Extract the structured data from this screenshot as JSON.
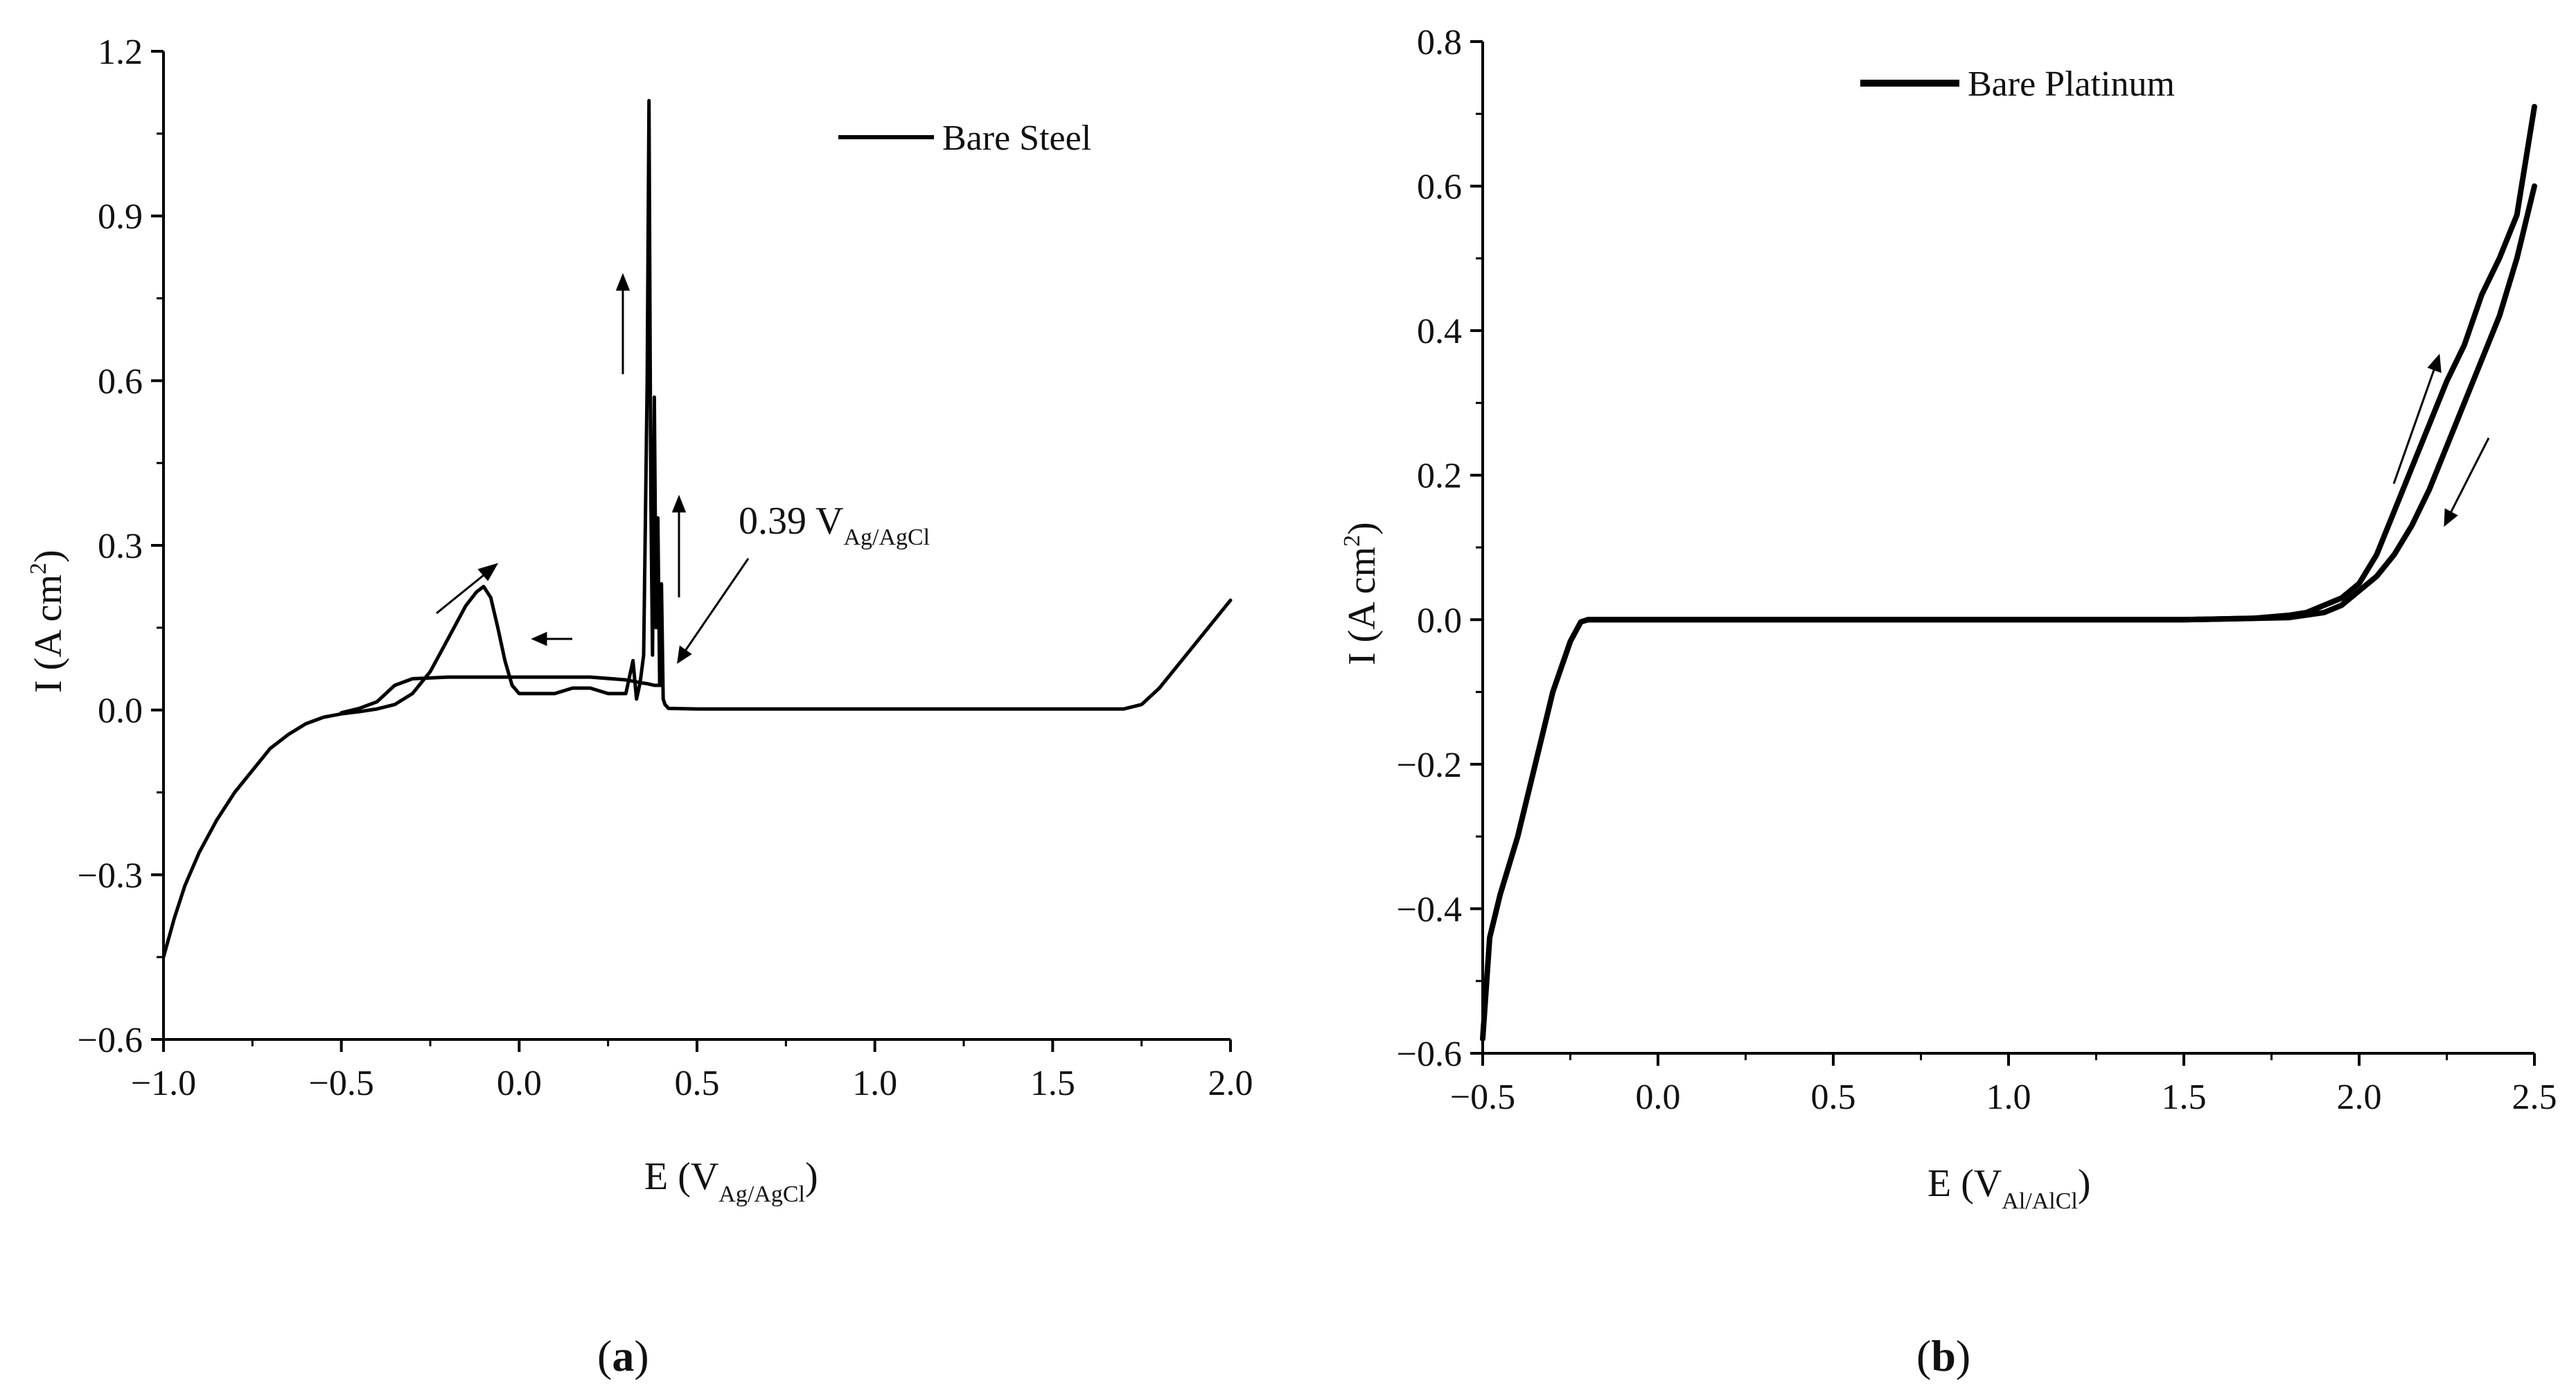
{
  "chart_data": [
    {
      "id": "a",
      "type": "line",
      "panel_label": {
        "open": "(",
        "letter": "a",
        "close": ")"
      },
      "xlabel": {
        "main": "E (V",
        "sub": "Ag/AgCl",
        "close": ")"
      },
      "ylabel": {
        "main": "I (A cm",
        "sup": "2",
        "close": ")"
      },
      "xlim": [
        -1.0,
        2.0
      ],
      "ylim": [
        -0.6,
        1.2
      ],
      "xticks": [
        -1.0,
        -0.5,
        0.0,
        0.5,
        1.0,
        1.5,
        2.0
      ],
      "xtick_labels": [
        "−1.0",
        "−0.5",
        "0.0",
        "0.5",
        "1.0",
        "1.5",
        "2.0"
      ],
      "yticks": [
        -0.6,
        -0.3,
        0.0,
        0.3,
        0.6,
        0.9,
        1.2
      ],
      "ytick_labels": [
        "−0.6",
        "−0.3",
        "0.0",
        "0.3",
        "0.6",
        "0.9",
        "1.2"
      ],
      "legend": {
        "label": "Bare Steel",
        "placement": "top-right"
      },
      "annotation": {
        "main": "0.39 V",
        "sub": "Ag/AgCl",
        "x": 0.39,
        "y": 0.0
      },
      "series": [
        {
          "name": "Bare Steel (forward scan)",
          "x": [
            -1.0,
            -0.97,
            -0.94,
            -0.9,
            -0.85,
            -0.8,
            -0.75,
            -0.7,
            -0.65,
            -0.6,
            -0.55,
            -0.5,
            -0.45,
            -0.4,
            -0.35,
            -0.3,
            -0.25,
            -0.2,
            -0.15,
            -0.12,
            -0.1,
            -0.08,
            -0.06,
            -0.04,
            -0.02,
            0.0,
            0.05,
            0.1,
            0.15,
            0.2,
            0.25,
            0.3,
            0.32,
            0.33,
            0.34,
            0.35,
            0.36,
            0.365,
            0.37,
            0.375,
            0.38,
            0.385,
            0.39,
            0.395,
            0.4,
            0.405,
            0.41,
            0.42,
            0.5,
            0.8,
            1.0,
            1.2,
            1.5,
            1.7,
            1.75,
            1.8,
            1.85,
            1.9,
            1.95,
            2.0
          ],
          "y": [
            -0.45,
            -0.38,
            -0.32,
            -0.26,
            -0.2,
            -0.15,
            -0.11,
            -0.07,
            -0.045,
            -0.025,
            -0.013,
            -0.007,
            -0.003,
            0.002,
            0.01,
            0.03,
            0.07,
            0.13,
            0.19,
            0.215,
            0.225,
            0.205,
            0.15,
            0.09,
            0.045,
            0.03,
            0.03,
            0.03,
            0.04,
            0.04,
            0.03,
            0.03,
            0.09,
            0.02,
            0.05,
            0.1,
            0.6,
            1.11,
            0.4,
            0.1,
            0.57,
            0.15,
            0.35,
            0.05,
            0.23,
            0.02,
            0.01,
            0.003,
            0.002,
            0.002,
            0.002,
            0.002,
            0.002,
            0.002,
            0.01,
            0.04,
            0.08,
            0.12,
            0.16,
            0.2
          ]
        },
        {
          "name": "Bare Steel (reverse scan)",
          "x": [
            0.4,
            0.38,
            0.36,
            0.34,
            0.3,
            0.2,
            0.1,
            0.0,
            -0.1,
            -0.2,
            -0.3,
            -0.35,
            -0.4,
            -0.45,
            -0.5
          ],
          "y": [
            0.045,
            0.045,
            0.048,
            0.05,
            0.055,
            0.06,
            0.06,
            0.06,
            0.06,
            0.06,
            0.057,
            0.045,
            0.015,
            0.003,
            -0.005
          ]
        }
      ]
    },
    {
      "id": "b",
      "type": "line",
      "panel_label": {
        "open": "(",
        "letter": "b",
        "close": ")"
      },
      "xlabel": {
        "main": "E (V",
        "sub": "Al/AlCl",
        "close": ")"
      },
      "ylabel": {
        "main": "I (A cm",
        "sup": "2",
        "close": ")"
      },
      "xlim": [
        -0.5,
        2.5
      ],
      "ylim": [
        -0.6,
        0.8
      ],
      "xticks": [
        -0.5,
        0.0,
        0.5,
        1.0,
        1.5,
        2.0,
        2.5
      ],
      "xtick_labels": [
        "−0.5",
        "0.0",
        "0.5",
        "1.0",
        "1.5",
        "2.0",
        "2.5"
      ],
      "yticks": [
        -0.6,
        -0.4,
        -0.2,
        0.0,
        0.2,
        0.4,
        0.6,
        0.8
      ],
      "ytick_labels": [
        "−0.6",
        "−0.4",
        "−0.2",
        "0.0",
        "0.2",
        "0.4",
        "0.6",
        "0.8"
      ],
      "legend": {
        "label": "Bare Platinum",
        "placement": "top-center"
      },
      "series": [
        {
          "name": "Bare Platinum (forward scan)",
          "x": [
            -0.5,
            -0.48,
            -0.45,
            -0.4,
            -0.35,
            -0.3,
            -0.25,
            -0.22,
            -0.2,
            0.0,
            0.5,
            1.0,
            1.5,
            1.7,
            1.8,
            1.85,
            1.9,
            1.95,
            2.0,
            2.05,
            2.1,
            2.15,
            2.2,
            2.25,
            2.3,
            2.35,
            2.4,
            2.45,
            2.5
          ],
          "y": [
            -0.58,
            -0.44,
            -0.38,
            -0.3,
            -0.2,
            -0.1,
            -0.03,
            -0.003,
            0.0,
            0.0,
            0.0,
            0.0,
            0.0,
            0.002,
            0.006,
            0.01,
            0.02,
            0.03,
            0.05,
            0.09,
            0.15,
            0.21,
            0.27,
            0.33,
            0.38,
            0.45,
            0.5,
            0.56,
            0.71
          ]
        },
        {
          "name": "Bare Platinum (reverse scan)",
          "x": [
            2.5,
            2.45,
            2.4,
            2.35,
            2.3,
            2.25,
            2.2,
            2.15,
            2.1,
            2.05,
            2.0,
            1.95,
            1.9,
            1.8,
            1.5,
            1.0,
            0.5,
            0.0,
            -0.2
          ],
          "y": [
            0.6,
            0.5,
            0.42,
            0.36,
            0.3,
            0.24,
            0.18,
            0.13,
            0.09,
            0.06,
            0.04,
            0.02,
            0.01,
            0.003,
            0.0,
            0.0,
            0.0,
            0.0,
            0.0
          ]
        }
      ]
    }
  ]
}
